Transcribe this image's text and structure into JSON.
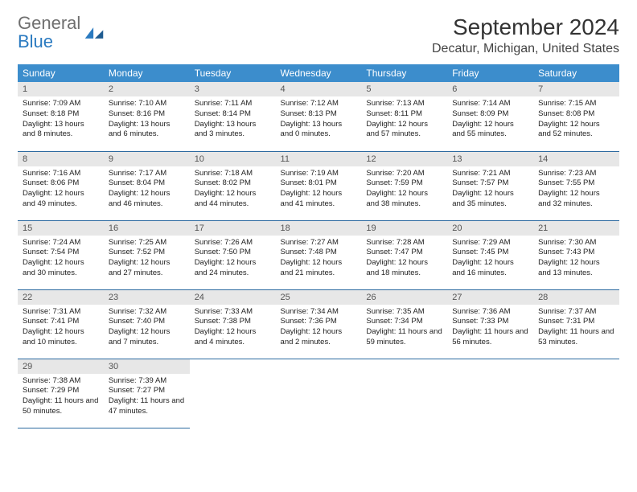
{
  "brand": {
    "part1": "General",
    "part2": "Blue"
  },
  "title": "September 2024",
  "location": "Decatur, Michigan, United States",
  "colors": {
    "header_bg": "#3c8dcc",
    "header_text": "#ffffff",
    "daynum_bg": "#e7e7e7",
    "row_border": "#2c6aa0",
    "logo_gray": "#6f6f6f",
    "logo_blue": "#2a7ac0"
  },
  "weekdays": [
    "Sunday",
    "Monday",
    "Tuesday",
    "Wednesday",
    "Thursday",
    "Friday",
    "Saturday"
  ],
  "days": [
    {
      "n": "1",
      "sr": "7:09 AM",
      "ss": "8:18 PM",
      "dl": "13 hours and 8 minutes."
    },
    {
      "n": "2",
      "sr": "7:10 AM",
      "ss": "8:16 PM",
      "dl": "13 hours and 6 minutes."
    },
    {
      "n": "3",
      "sr": "7:11 AM",
      "ss": "8:14 PM",
      "dl": "13 hours and 3 minutes."
    },
    {
      "n": "4",
      "sr": "7:12 AM",
      "ss": "8:13 PM",
      "dl": "13 hours and 0 minutes."
    },
    {
      "n": "5",
      "sr": "7:13 AM",
      "ss": "8:11 PM",
      "dl": "12 hours and 57 minutes."
    },
    {
      "n": "6",
      "sr": "7:14 AM",
      "ss": "8:09 PM",
      "dl": "12 hours and 55 minutes."
    },
    {
      "n": "7",
      "sr": "7:15 AM",
      "ss": "8:08 PM",
      "dl": "12 hours and 52 minutes."
    },
    {
      "n": "8",
      "sr": "7:16 AM",
      "ss": "8:06 PM",
      "dl": "12 hours and 49 minutes."
    },
    {
      "n": "9",
      "sr": "7:17 AM",
      "ss": "8:04 PM",
      "dl": "12 hours and 46 minutes."
    },
    {
      "n": "10",
      "sr": "7:18 AM",
      "ss": "8:02 PM",
      "dl": "12 hours and 44 minutes."
    },
    {
      "n": "11",
      "sr": "7:19 AM",
      "ss": "8:01 PM",
      "dl": "12 hours and 41 minutes."
    },
    {
      "n": "12",
      "sr": "7:20 AM",
      "ss": "7:59 PM",
      "dl": "12 hours and 38 minutes."
    },
    {
      "n": "13",
      "sr": "7:21 AM",
      "ss": "7:57 PM",
      "dl": "12 hours and 35 minutes."
    },
    {
      "n": "14",
      "sr": "7:23 AM",
      "ss": "7:55 PM",
      "dl": "12 hours and 32 minutes."
    },
    {
      "n": "15",
      "sr": "7:24 AM",
      "ss": "7:54 PM",
      "dl": "12 hours and 30 minutes."
    },
    {
      "n": "16",
      "sr": "7:25 AM",
      "ss": "7:52 PM",
      "dl": "12 hours and 27 minutes."
    },
    {
      "n": "17",
      "sr": "7:26 AM",
      "ss": "7:50 PM",
      "dl": "12 hours and 24 minutes."
    },
    {
      "n": "18",
      "sr": "7:27 AM",
      "ss": "7:48 PM",
      "dl": "12 hours and 21 minutes."
    },
    {
      "n": "19",
      "sr": "7:28 AM",
      "ss": "7:47 PM",
      "dl": "12 hours and 18 minutes."
    },
    {
      "n": "20",
      "sr": "7:29 AM",
      "ss": "7:45 PM",
      "dl": "12 hours and 16 minutes."
    },
    {
      "n": "21",
      "sr": "7:30 AM",
      "ss": "7:43 PM",
      "dl": "12 hours and 13 minutes."
    },
    {
      "n": "22",
      "sr": "7:31 AM",
      "ss": "7:41 PM",
      "dl": "12 hours and 10 minutes."
    },
    {
      "n": "23",
      "sr": "7:32 AM",
      "ss": "7:40 PM",
      "dl": "12 hours and 7 minutes."
    },
    {
      "n": "24",
      "sr": "7:33 AM",
      "ss": "7:38 PM",
      "dl": "12 hours and 4 minutes."
    },
    {
      "n": "25",
      "sr": "7:34 AM",
      "ss": "7:36 PM",
      "dl": "12 hours and 2 minutes."
    },
    {
      "n": "26",
      "sr": "7:35 AM",
      "ss": "7:34 PM",
      "dl": "11 hours and 59 minutes."
    },
    {
      "n": "27",
      "sr": "7:36 AM",
      "ss": "7:33 PM",
      "dl": "11 hours and 56 minutes."
    },
    {
      "n": "28",
      "sr": "7:37 AM",
      "ss": "7:31 PM",
      "dl": "11 hours and 53 minutes."
    },
    {
      "n": "29",
      "sr": "7:38 AM",
      "ss": "7:29 PM",
      "dl": "11 hours and 50 minutes."
    },
    {
      "n": "30",
      "sr": "7:39 AM",
      "ss": "7:27 PM",
      "dl": "11 hours and 47 minutes."
    }
  ],
  "labels": {
    "sunrise": "Sunrise:",
    "sunset": "Sunset:",
    "daylight": "Daylight:"
  },
  "layout": {
    "start_weekday": 0,
    "columns": 7
  }
}
